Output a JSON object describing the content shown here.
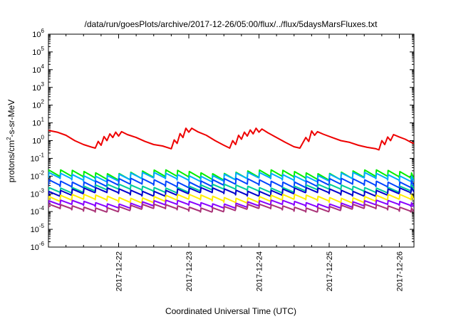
{
  "chart_data": {
    "type": "line",
    "title": "/data/run/goesPlots/archive/2017-12-26/05:00/flux/../flux/5daysMarsFluxes.txt",
    "xlabel": "Coordinated Universal Time (UTC)",
    "ylabel_parts": {
      "base": "protons/cm",
      "sup": "2",
      "rest": "-s-sr-MeV"
    },
    "y_scale": "log",
    "ylim": [
      1e-06,
      1000000.0
    ],
    "xlim": [
      "2017-12-21 00:00",
      "2017-12-26 05:00"
    ],
    "y_tick_labels": [
      {
        "base": "10",
        "exp": "-6"
      },
      {
        "base": "10",
        "exp": "-5"
      },
      {
        "base": "10",
        "exp": "-4"
      },
      {
        "base": "10",
        "exp": "-3"
      },
      {
        "base": "10",
        "exp": "-2"
      },
      {
        "base": "10",
        "exp": "-1"
      },
      {
        "base": "10",
        "exp": "0"
      },
      {
        "base": "10",
        "exp": "1"
      },
      {
        "base": "10",
        "exp": "2"
      },
      {
        "base": "10",
        "exp": "3"
      },
      {
        "base": "10",
        "exp": "4"
      },
      {
        "base": "10",
        "exp": "5"
      },
      {
        "base": "10",
        "exp": "6"
      }
    ],
    "x_tick_labels": [
      "2017-12-22",
      "2017-12-23",
      "2017-12-24",
      "2017-12-25",
      "2017-12-26"
    ],
    "grid": false,
    "series": [
      {
        "color": "#ee0000",
        "points": [
          [
            "2017-12-21 00:00",
            3.8
          ],
          [
            "2017-12-21 03:00",
            3.0
          ],
          [
            "2017-12-21 06:00",
            2.0
          ],
          [
            "2017-12-21 09:00",
            1.0
          ],
          [
            "2017-12-21 12:00",
            0.6
          ],
          [
            "2017-12-21 15:00",
            0.42
          ],
          [
            "2017-12-21 16:00",
            0.38
          ],
          [
            "2017-12-21 17:00",
            0.9
          ],
          [
            "2017-12-21 18:00",
            0.55
          ],
          [
            "2017-12-21 19:00",
            1.7
          ],
          [
            "2017-12-21 20:00",
            1.0
          ],
          [
            "2017-12-21 21:00",
            2.4
          ],
          [
            "2017-12-21 22:00",
            1.5
          ],
          [
            "2017-12-21 23:00",
            3.0
          ],
          [
            "2017-12-22 00:00",
            1.8
          ],
          [
            "2017-12-22 01:00",
            3.2
          ],
          [
            "2017-12-22 03:00",
            2.2
          ],
          [
            "2017-12-22 06:00",
            1.5
          ],
          [
            "2017-12-22 09:00",
            0.9
          ],
          [
            "2017-12-22 12:00",
            0.6
          ],
          [
            "2017-12-22 15:00",
            0.5
          ],
          [
            "2017-12-22 18:00",
            0.35
          ],
          [
            "2017-12-22 19:00",
            1.1
          ],
          [
            "2017-12-22 20:00",
            0.7
          ],
          [
            "2017-12-22 21:00",
            2.5
          ],
          [
            "2017-12-22 22:00",
            1.5
          ],
          [
            "2017-12-22 23:00",
            5.0
          ],
          [
            "2017-12-23 00:00",
            3.0
          ],
          [
            "2017-12-23 01:00",
            5.0
          ],
          [
            "2017-12-23 03:00",
            3.2
          ],
          [
            "2017-12-23 06:00",
            2.0
          ],
          [
            "2017-12-23 09:00",
            1.0
          ],
          [
            "2017-12-23 12:00",
            0.55
          ],
          [
            "2017-12-23 14:00",
            0.38
          ],
          [
            "2017-12-23 15:00",
            1.0
          ],
          [
            "2017-12-23 16:00",
            0.6
          ],
          [
            "2017-12-23 17:00",
            2.0
          ],
          [
            "2017-12-23 18:00",
            1.2
          ],
          [
            "2017-12-23 19:00",
            3.0
          ],
          [
            "2017-12-23 20:00",
            1.8
          ],
          [
            "2017-12-23 21:00",
            4.0
          ],
          [
            "2017-12-23 22:00",
            2.4
          ],
          [
            "2017-12-23 23:00",
            5.0
          ],
          [
            "2017-12-24 00:00",
            3.0
          ],
          [
            "2017-12-24 01:00",
            4.5
          ],
          [
            "2017-12-24 03:00",
            2.8
          ],
          [
            "2017-12-24 06:00",
            1.5
          ],
          [
            "2017-12-24 09:00",
            0.8
          ],
          [
            "2017-12-24 12:00",
            0.45
          ],
          [
            "2017-12-24 14:00",
            0.38
          ],
          [
            "2017-12-24 16:00",
            1.5
          ],
          [
            "2017-12-24 17:00",
            0.9
          ],
          [
            "2017-12-24 18:00",
            3.5
          ],
          [
            "2017-12-24 19:00",
            2.0
          ],
          [
            "2017-12-24 20:00",
            3.2
          ],
          [
            "2017-12-24 22:00",
            2.3
          ],
          [
            "2017-12-25 01:00",
            1.5
          ],
          [
            "2017-12-25 04:00",
            1.0
          ],
          [
            "2017-12-25 07:00",
            0.8
          ],
          [
            "2017-12-25 10:00",
            0.55
          ],
          [
            "2017-12-25 13:00",
            0.42
          ],
          [
            "2017-12-25 16:00",
            0.35
          ],
          [
            "2017-12-25 17:00",
            0.3
          ],
          [
            "2017-12-25 18:00",
            1.0
          ],
          [
            "2017-12-25 19:00",
            0.6
          ],
          [
            "2017-12-25 20:00",
            1.6
          ],
          [
            "2017-12-25 21:00",
            1.0
          ],
          [
            "2017-12-25 22:00",
            2.2
          ],
          [
            "2017-12-26 00:00",
            1.6
          ],
          [
            "2017-12-26 02:00",
            1.2
          ],
          [
            "2017-12-26 04:00",
            0.8
          ],
          [
            "2017-12-26 05:00",
            0.7
          ]
        ]
      },
      {
        "color": "#00ee00",
        "base": 0.018,
        "drop": 0.45,
        "spike_base": 0.028,
        "flat": true
      },
      {
        "color": "#00aaff",
        "base": 0.013,
        "drop": 0.5,
        "flat": true
      },
      {
        "color": "#0044ff",
        "base": 0.006,
        "drop": 0.5,
        "flat": true
      },
      {
        "color": "#00cc99",
        "base": 0.0028,
        "drop": 0.55,
        "flat": true
      },
      {
        "color": "#0000cc",
        "base": 0.0018,
        "drop": 0.55,
        "flat": true
      },
      {
        "color": "#ffee00",
        "base": 0.00075,
        "drop": 0.55,
        "flat": true
      },
      {
        "color": "#8800ff",
        "base": 0.00035,
        "drop": 0.6,
        "flat": true
      },
      {
        "color": "#aa3377",
        "base": 0.00021,
        "drop": 0.6,
        "flat": true
      }
    ]
  }
}
